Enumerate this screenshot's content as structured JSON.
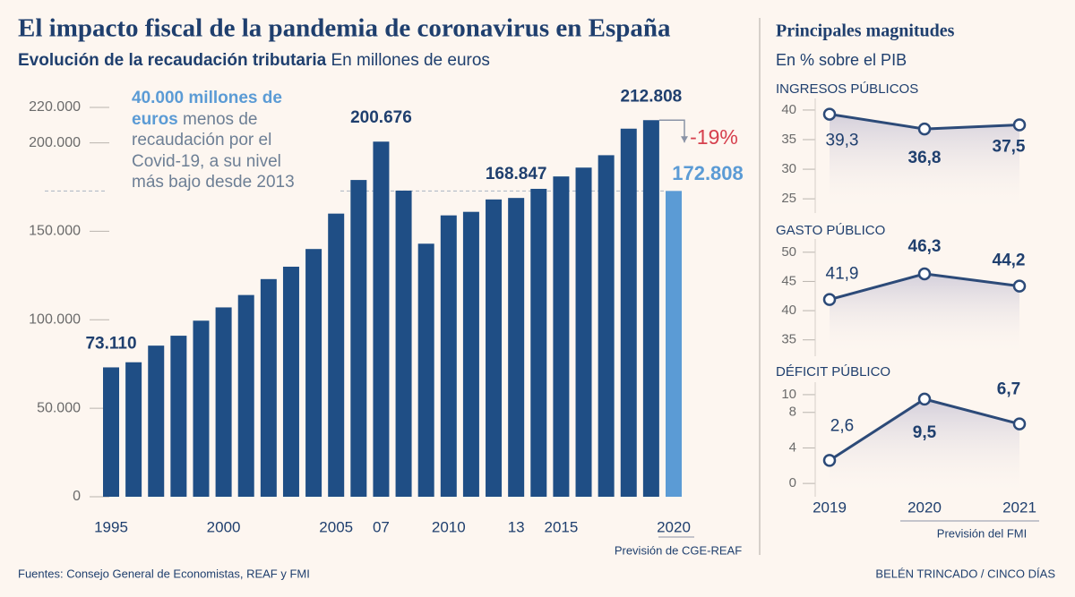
{
  "header": {
    "title": "El impacto fiscal de la pandemia de coronavirus en España"
  },
  "chart_data": [
    {
      "type": "bar",
      "subtitle": "Evolución de la recaudación tributaria",
      "unit_label": "En millones de euros",
      "categories": [
        "1995",
        null,
        null,
        null,
        null,
        "2000",
        null,
        null,
        null,
        null,
        "2005",
        null,
        "07",
        null,
        null,
        "2010",
        null,
        null,
        "13",
        null,
        "2015",
        null,
        null,
        null,
        null,
        "2020"
      ],
      "values": [
        73110,
        76000,
        85400,
        91000,
        99500,
        107000,
        114000,
        123000,
        130000,
        140000,
        160000,
        179000,
        200676,
        173000,
        143000,
        159000,
        161000,
        168000,
        168847,
        174000,
        181000,
        186000,
        193000,
        208000,
        212808,
        172808
      ],
      "value_labels": [
        "73.110",
        null,
        null,
        null,
        null,
        null,
        null,
        null,
        null,
        null,
        null,
        null,
        "200.676",
        null,
        null,
        null,
        null,
        null,
        "168.847",
        null,
        null,
        null,
        null,
        null,
        "212.808",
        "172.808"
      ],
      "colors": [
        "#1f4e85",
        "#1f4e85",
        "#1f4e85",
        "#1f4e85",
        "#1f4e85",
        "#1f4e85",
        "#1f4e85",
        "#1f4e85",
        "#1f4e85",
        "#1f4e85",
        "#1f4e85",
        "#1f4e85",
        "#1f4e85",
        "#1f4e85",
        "#1f4e85",
        "#1f4e85",
        "#1f4e85",
        "#1f4e85",
        "#1f4e85",
        "#1f4e85",
        "#1f4e85",
        "#1f4e85",
        "#1f4e85",
        "#1f4e85",
        "#1f4e85",
        "#5b9bd5"
      ],
      "ylim": [
        0,
        232000
      ],
      "yticks": [
        0,
        {
          "value": 50000,
          "label": "50.000"
        },
        {
          "value": 100000,
          "label": "100.000"
        },
        {
          "value": 150000,
          "label": "150.000"
        },
        {
          "value": 200000,
          "label": "200.000"
        },
        {
          "value": 220000,
          "label": "220.000"
        }
      ],
      "annotation": {
        "highlight": "40.000 millones de euros",
        "text": "menos de recaudación por el Covid-19, a su nivel más bajo desde 2013"
      },
      "change_label": "-19%",
      "note": "Previsión de CGE-REAF"
    },
    {
      "type": "line",
      "title": "INGRESOS PÚBLICOS",
      "color": "#2c4a78",
      "values": [
        39.3,
        36.8,
        37.5
      ],
      "value_labels": [
        "39,3",
        "36,8",
        "37,5"
      ],
      "ylim": [
        22.6,
        41.2
      ],
      "yticks": [
        25,
        30,
        35,
        40
      ]
    },
    {
      "type": "line",
      "title": "GASTO PÚBLICO",
      "color": "#2c4a78",
      "values": [
        41.9,
        46.3,
        44.2
      ],
      "value_labels": [
        "41,9",
        "46,3",
        "44,2"
      ],
      "ylim": [
        32.2,
        51.5
      ],
      "yticks": [
        35,
        40,
        45,
        50
      ]
    },
    {
      "type": "line",
      "title": "DÉFICIT PÚBLICO",
      "color": "#2c4a78",
      "categories": [
        "2019",
        "2020",
        "2021"
      ],
      "values": [
        2.6,
        9.5,
        6.7
      ],
      "value_labels": [
        "2,6",
        "9,5",
        "6,7"
      ],
      "ylim": [
        -1.5,
        10.9
      ],
      "yticks": [
        0,
        4,
        8,
        10
      ],
      "note": "Previsión del FMI"
    }
  ],
  "panel": {
    "title": "Principales magnitudes",
    "subtitle": "En % sobre el PIB"
  },
  "footer": {
    "source": "Fuentes: Consejo General de Economistas, REAF y FMI",
    "credit": "BELÉN TRINCADO / CINCO DÍAS"
  }
}
